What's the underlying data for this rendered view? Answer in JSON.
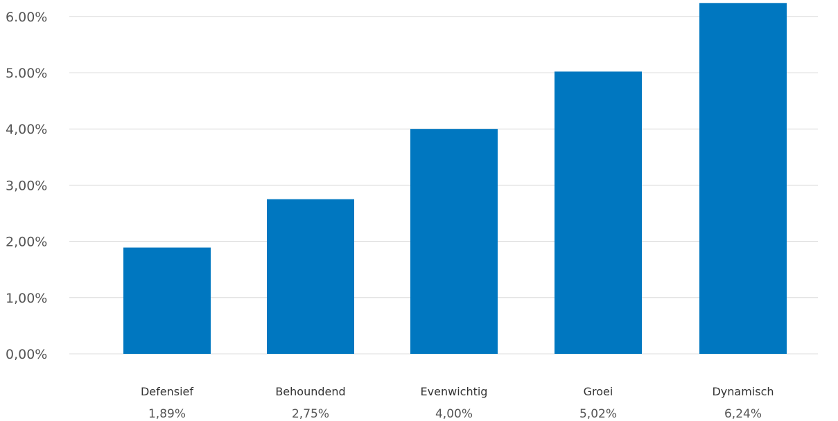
{
  "chart_data": {
    "type": "bar",
    "categories": [
      "Defensief",
      "Behoundend",
      "Evenwichtig",
      "Groei",
      "Dynamisch"
    ],
    "values": [
      1.89,
      2.75,
      4.0,
      5.02,
      6.24
    ],
    "value_labels": [
      "1,89%",
      "2,75%",
      "4,00%",
      "5,02%",
      "6,24%"
    ],
    "y_ticks": [
      0,
      1,
      2,
      3,
      4,
      5,
      6
    ],
    "y_tick_labels": [
      "0,00%",
      "1,00%",
      "2,00%",
      "3,00%",
      "4,00%",
      "5.00%",
      "6.00%"
    ],
    "ylim": [
      0,
      6.3
    ],
    "grid": true,
    "title": "",
    "xlabel": "",
    "ylabel": "",
    "bar_color": "#0077C0",
    "grid_color": "#DCDCDC"
  }
}
